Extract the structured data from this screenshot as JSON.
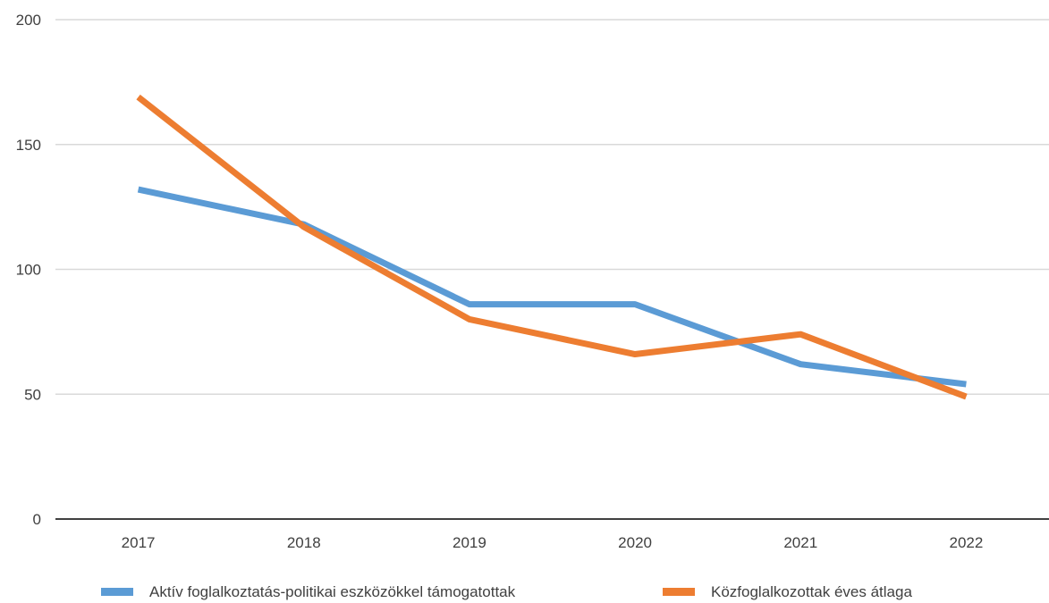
{
  "chart_data": {
    "type": "line",
    "categories": [
      "2017",
      "2018",
      "2019",
      "2020",
      "2021",
      "2022"
    ],
    "ylim": [
      0,
      200
    ],
    "yticks": [
      0,
      50,
      100,
      150,
      200
    ],
    "grid": true,
    "legend_position": "bottom",
    "series": [
      {
        "name": "Aktív foglalkoztatás-politikai eszközökkel támogatottak",
        "color": "#5B9BD5",
        "values": [
          132,
          118,
          86,
          86,
          62,
          54
        ]
      },
      {
        "name": "Közfoglalkozottak éves átlaga",
        "color": "#ED7D31",
        "values": [
          169,
          117,
          80,
          66,
          74,
          49
        ]
      }
    ]
  }
}
